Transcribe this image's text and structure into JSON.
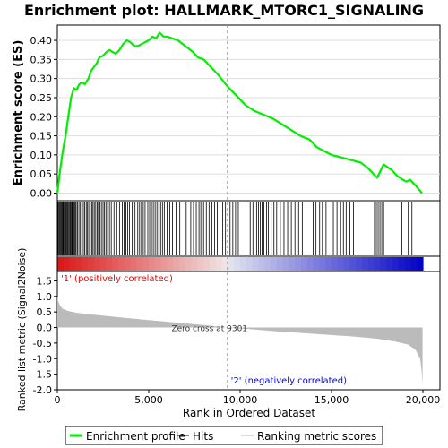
{
  "chart_data": {
    "type": "line",
    "title": "Enrichment plot: HALLMARK_MTORC1_SIGNALING",
    "top_panel": {
      "ylabel": "Enrichment score (ES)",
      "ylim": [
        -0.02,
        0.44
      ],
      "yticks": [
        "0.00",
        "0.05",
        "0.10",
        "0.15",
        "0.20",
        "0.25",
        "0.30",
        "0.35",
        "0.40"
      ],
      "ytick_values": [
        0,
        0.05,
        0.1,
        0.15,
        0.2,
        0.25,
        0.3,
        0.35,
        0.4
      ],
      "series": [
        {
          "name": "Enrichment profile",
          "color": "#00ee00",
          "x": [
            0,
            150,
            300,
            450,
            600,
            750,
            900,
            1050,
            1200,
            1350,
            1500,
            1700,
            1850,
            2000,
            2150,
            2300,
            2500,
            2700,
            2850,
            3000,
            3200,
            3400,
            3600,
            3800,
            4000,
            4200,
            4400,
            4600,
            4800,
            5000,
            5200,
            5400,
            5600,
            5800,
            6000,
            6300,
            6600,
            7000,
            7400,
            7700,
            8000,
            8400,
            8800,
            9300,
            9800,
            10300,
            10800,
            11300,
            11800,
            12300,
            12800,
            13300,
            13800,
            14200,
            14600,
            15000,
            15400,
            15800,
            16200,
            16600,
            17000,
            17300,
            17500,
            17700,
            17850,
            18000,
            18300,
            18600,
            18900,
            19100,
            19300,
            19600,
            19950
          ],
          "y": [
            0.0,
            0.06,
            0.11,
            0.15,
            0.2,
            0.25,
            0.275,
            0.27,
            0.285,
            0.29,
            0.285,
            0.3,
            0.32,
            0.33,
            0.34,
            0.355,
            0.36,
            0.37,
            0.375,
            0.37,
            0.365,
            0.375,
            0.39,
            0.4,
            0.395,
            0.385,
            0.385,
            0.39,
            0.395,
            0.4,
            0.41,
            0.405,
            0.42,
            0.41,
            0.41,
            0.405,
            0.4,
            0.385,
            0.37,
            0.355,
            0.35,
            0.33,
            0.31,
            0.28,
            0.255,
            0.23,
            0.215,
            0.205,
            0.195,
            0.18,
            0.165,
            0.15,
            0.14,
            0.12,
            0.11,
            0.1,
            0.095,
            0.09,
            0.085,
            0.08,
            0.065,
            0.05,
            0.04,
            0.06,
            0.075,
            0.07,
            0.06,
            0.045,
            0.035,
            0.03,
            0.035,
            0.02,
            0.0
          ]
        }
      ]
    },
    "hits_panel": {
      "name": "Hits",
      "hit_positions": [
        30,
        80,
        120,
        170,
        220,
        260,
        300,
        340,
        390,
        430,
        470,
        510,
        560,
        600,
        650,
        700,
        740,
        790,
        830,
        880,
        930,
        980,
        1030,
        1100,
        1180,
        1260,
        1340,
        1420,
        1500,
        1580,
        1650,
        1720,
        1800,
        1880,
        1950,
        2020,
        2100,
        2180,
        2250,
        2330,
        2410,
        2500,
        2580,
        2660,
        2750,
        2850,
        2950,
        3100,
        3250,
        3400,
        3550,
        3650,
        3750,
        3850,
        3950,
        4100,
        4250,
        4400,
        4500,
        4600,
        4700,
        4800,
        4950,
        5050,
        5150,
        5250,
        5350,
        5450,
        5550,
        5650,
        5750,
        5850,
        6000,
        6150,
        6300,
        6500,
        6700,
        7050,
        7300,
        7450,
        7600,
        7750,
        7850,
        8000,
        8150,
        8300,
        8450,
        8600,
        8750,
        8900,
        9050,
        9200,
        9450,
        9600,
        9750,
        9900,
        10550,
        10700,
        10900,
        11000,
        11100,
        11200,
        11300,
        11450,
        11550,
        11700,
        11850,
        12000,
        12200,
        12400,
        12600,
        12800,
        13000,
        13200,
        13400,
        14000,
        14150,
        14350,
        14500,
        14700,
        15100,
        15300,
        15500,
        15650,
        15800,
        16000,
        16200,
        16450,
        17350,
        17450,
        17550,
        17650,
        17750,
        17850,
        18850,
        19200,
        19400
      ]
    },
    "ranked_panel": {
      "name": "Ranking metric scores",
      "ylabel": "Ranked list metric (Signal2Noise)",
      "ylim": [
        -2.0,
        1.8
      ],
      "yticks": [
        "-2.0",
        "-1.5",
        "-1.0",
        "-0.5",
        "0.0",
        "0.5",
        "1.0",
        "1.5"
      ],
      "ytick_values": [
        -2.0,
        -1.5,
        -1.0,
        -0.5,
        0.0,
        0.5,
        1.0,
        1.5
      ],
      "x": [
        0,
        50,
        150,
        300,
        600,
        1000,
        1500,
        2500,
        3500,
        5000,
        6500,
        8000,
        9301,
        10500,
        12000,
        14000,
        16000,
        17500,
        18500,
        19200,
        19600,
        19850,
        19930,
        19980
      ],
      "y": [
        1.0,
        0.85,
        0.7,
        0.6,
        0.53,
        0.48,
        0.44,
        0.38,
        0.32,
        0.24,
        0.16,
        0.08,
        0.0,
        -0.05,
        -0.12,
        -0.2,
        -0.28,
        -0.36,
        -0.45,
        -0.55,
        -0.72,
        -1.0,
        -1.4,
        -1.85
      ],
      "zero_cross_label": "Zero cross at 9301",
      "zero_cross": 9301,
      "positive_label": "'1' (positively correlated)",
      "negative_label": "'2' (negatively correlated)"
    },
    "xlabel": "Rank in Ordered Dataset",
    "xlim": [
      0,
      20000
    ],
    "xticks": [
      "0",
      "5,000",
      "10,000",
      "15,000",
      "20,000"
    ],
    "xtick_values": [
      0,
      5000,
      10000,
      15000,
      20000
    ],
    "legend": {
      "placement": "bottom",
      "items": [
        {
          "label": "Enrichment profile",
          "color": "#00ee00",
          "kind": "thick-line"
        },
        {
          "label": "Hits",
          "color": "#000000",
          "kind": "line"
        },
        {
          "label": "Ranking metric scores",
          "color": "#bbbbbb",
          "kind": "line"
        }
      ]
    },
    "colors": {
      "positive_label": "#ee0000",
      "negative_label": "#0000ee",
      "zero_cross_line": "#999999",
      "metric_fill": "#bbbbbb",
      "es_grid": "#dddddd"
    }
  }
}
